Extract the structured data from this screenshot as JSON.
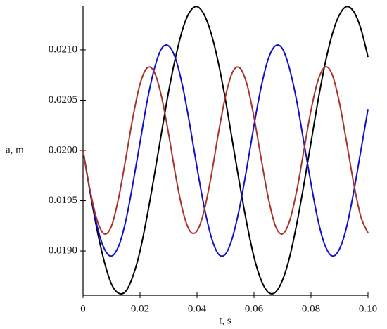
{
  "chart_data": {
    "type": "line",
    "x_label": "t, s",
    "y_label": "a, m",
    "xlim": [
      0,
      0.1
    ],
    "ylim": [
      0.01856,
      0.02144
    ],
    "xticks": [
      0,
      0.02,
      0.04,
      0.06,
      0.08,
      {
        "value": 0.1,
        "label": "0.10"
      }
    ],
    "yticks": [
      {
        "value": 0.019,
        "label": "0.0190"
      },
      0.0195,
      {
        "value": 0.02,
        "label": "0.0200"
      },
      0.0205,
      {
        "value": 0.021,
        "label": "0.0210"
      }
    ],
    "x": [
      0,
      0.0025,
      0.005,
      0.0075,
      0.01,
      0.0125,
      0.015,
      0.0175,
      0.02,
      0.0225,
      0.025,
      0.0275,
      0.03,
      0.0325,
      0.035,
      0.0375,
      0.04,
      0.0425,
      0.045,
      0.0475,
      0.05,
      0.0525,
      0.055,
      0.0575,
      0.06,
      0.0625,
      0.065,
      0.0675,
      0.07,
      0.0725,
      0.075,
      0.0775,
      0.08,
      0.0825,
      0.085,
      0.0875,
      0.09,
      0.0925,
      0.095,
      0.0975,
      0.1
    ],
    "series": [
      {
        "color": "#000000",
        "values": [
          0.02,
          0.01958,
          0.0192,
          0.01889,
          0.01867,
          0.01858,
          0.0186,
          0.01875,
          0.019,
          0.01935,
          0.01975,
          0.02017,
          0.02058,
          0.02093,
          0.02121,
          0.02138,
          0.02143,
          0.02135,
          0.02116,
          0.02087,
          0.0205,
          0.02008,
          0.01966,
          0.01927,
          0.01894,
          0.01871,
          0.01859,
          0.01859,
          0.01871,
          0.01894,
          0.01927,
          0.01966,
          0.02008,
          0.0205,
          0.02087,
          0.02116,
          0.02135,
          0.02143,
          0.02138,
          0.02121,
          0.02093
        ]
      },
      {
        "color": "#1010cc",
        "values": [
          0.02,
          0.01959,
          0.01924,
          0.01902,
          0.01895,
          0.01905,
          0.0193,
          0.01967,
          0.02008,
          0.02049,
          0.02081,
          0.02101,
          0.02104,
          0.02091,
          0.02063,
          0.02025,
          0.01983,
          0.01944,
          0.01914,
          0.01897,
          0.01897,
          0.01914,
          0.01944,
          0.01983,
          0.02025,
          0.02063,
          0.02091,
          0.02104,
          0.02101,
          0.02081,
          0.02049,
          0.02008,
          0.01967,
          0.0193,
          0.01905,
          0.01895,
          0.01902,
          0.01924,
          0.01959,
          0.02,
          0.02041
        ]
      },
      {
        "color": "#a8332a",
        "values": [
          0.02,
          0.0196,
          0.0193,
          0.01917,
          0.01925,
          0.01953,
          0.01992,
          0.02033,
          0.02066,
          0.02082,
          0.02078,
          0.02054,
          0.02017,
          0.01975,
          0.0194,
          0.0192,
          0.0192,
          0.0194,
          0.01975,
          0.02017,
          0.02054,
          0.02078,
          0.02082,
          0.02066,
          0.02033,
          0.01992,
          0.01953,
          0.01925,
          0.01917,
          0.0193,
          0.0196,
          0.02,
          0.0204,
          0.0207,
          0.02083,
          0.02075,
          0.02047,
          0.02008,
          0.01967,
          0.01934,
          0.01918
        ]
      }
    ]
  }
}
